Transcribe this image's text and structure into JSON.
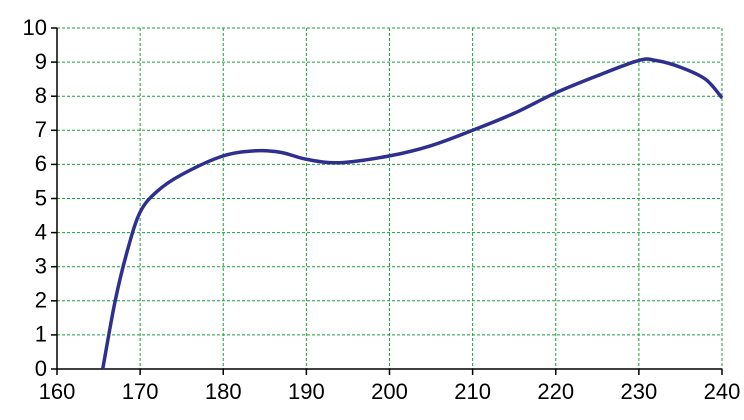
{
  "chart_data": {
    "type": "line",
    "x": [
      165.5,
      167,
      168.5,
      170,
      172,
      175,
      180,
      184,
      187,
      190,
      194,
      200,
      205,
      210,
      215,
      220,
      225,
      230,
      232,
      235,
      238,
      240
    ],
    "series": [
      {
        "color": "#2e2f8f",
        "values": [
          0,
          2,
          3.5,
          4.6,
          5.2,
          5.7,
          6.25,
          6.4,
          6.35,
          6.15,
          6.05,
          6.25,
          6.55,
          7.0,
          7.5,
          8.1,
          8.6,
          9.05,
          9.05,
          8.85,
          8.5,
          7.95
        ]
      }
    ],
    "xlim": [
      160,
      240
    ],
    "xticks": [
      160,
      170,
      180,
      190,
      200,
      210,
      220,
      230,
      240
    ],
    "ylim": [
      0,
      10
    ],
    "yticks": [
      0,
      1,
      2,
      3,
      4,
      5,
      6,
      7,
      8,
      9,
      10
    ],
    "grid": true
  }
}
